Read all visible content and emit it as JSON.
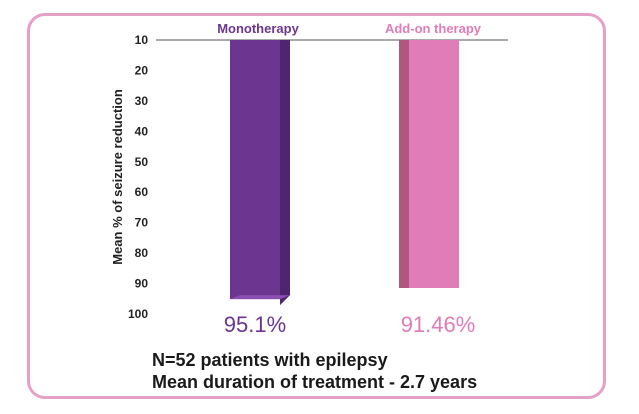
{
  "chart_data": {
    "type": "bar",
    "title": "",
    "xlabel": "",
    "ylabel": "Mean % of seizure reduction",
    "ylim": [
      10,
      100
    ],
    "yticks": [
      "10",
      "20",
      "30",
      "40",
      "50",
      "60",
      "70",
      "80",
      "90",
      "100"
    ],
    "y_axis_inverted": true,
    "grid": false,
    "categories": [
      "Monotherapy",
      "Add-on therapy"
    ],
    "values": [
      95.1,
      91.46
    ],
    "value_labels": [
      "95.1%",
      "91.46%"
    ],
    "colors": [
      "#6b3590",
      "#e07cb8"
    ]
  },
  "notes": {
    "line1": "N=52 patients with epilepsy",
    "line2": "Mean duration of treatment - 2.7 years"
  },
  "colors": {
    "frame": "#e5a0c8",
    "monotherapy": "#6b3590",
    "addon": "#e07cb8",
    "axis_text": "#222222"
  }
}
